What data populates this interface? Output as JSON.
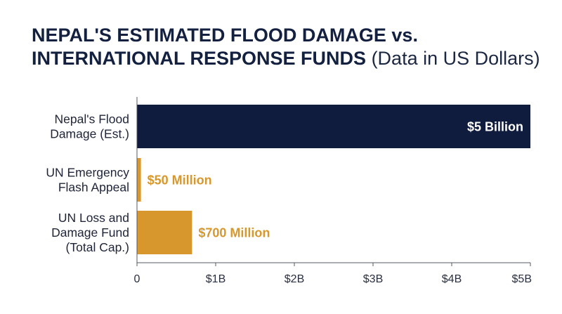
{
  "title": {
    "bold": "NEPAL'S ESTIMATED FLOOD DAMAGE vs. INTERNATIONAL RESPONSE FUNDS",
    "light": "(Data in US Dollars)"
  },
  "colors": {
    "primary_bar": "#0f1c3d",
    "secondary_bar": "#d8972c",
    "secondary_label": "#d8972c",
    "primary_label": "#ffffff",
    "axis": "#555a66"
  },
  "chart_data": {
    "type": "bar",
    "orientation": "horizontal",
    "categories": [
      [
        "Nepal's Flood",
        "Damage (Est.)"
      ],
      [
        "UN Emergency",
        "Flash Appeal"
      ],
      [
        "UN Loss and",
        "Damage Fund",
        "(Total Cap.)"
      ]
    ],
    "values": [
      5000000000,
      50000000,
      700000000
    ],
    "value_labels": [
      "$5 Billion",
      "$50 Million",
      "$700 Million"
    ],
    "bar_colors": [
      "primary",
      "secondary",
      "secondary"
    ],
    "xlim": [
      0,
      5000000000
    ],
    "xticks": [
      0,
      1000000000,
      2000000000,
      3000000000,
      4000000000,
      5000000000
    ],
    "xtick_labels": [
      "0",
      "$1B",
      "$2B",
      "$3B",
      "$4B",
      "$5B"
    ],
    "grid": false,
    "xlabel": "",
    "ylabel": ""
  }
}
